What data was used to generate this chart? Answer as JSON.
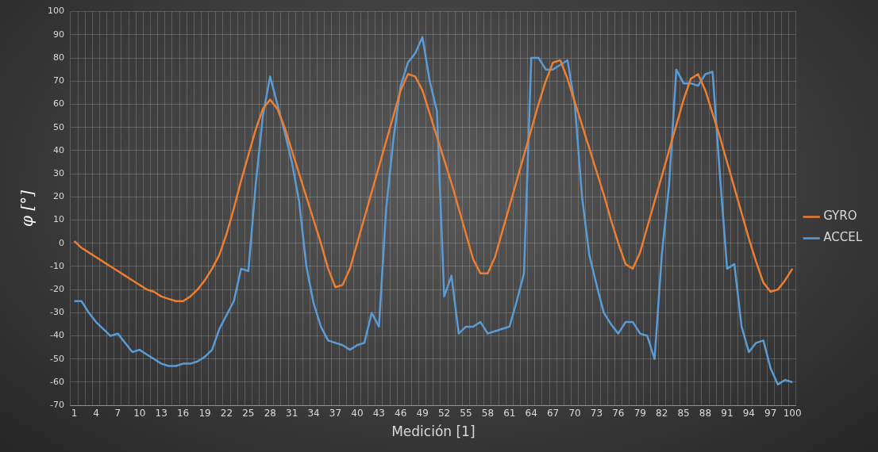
{
  "chart_data": {
    "type": "line",
    "xlabel": "Medición [1]",
    "ylabel": "φ [°]",
    "categories": [
      "1",
      null,
      null,
      "4",
      null,
      null,
      "7",
      null,
      null,
      "10",
      null,
      null,
      "13",
      null,
      null,
      "16",
      null,
      null,
      "19",
      null,
      null,
      "22",
      null,
      null,
      "25",
      null,
      null,
      "28",
      null,
      null,
      "31",
      null,
      null,
      "34",
      null,
      null,
      "37",
      null,
      null,
      "40",
      null,
      null,
      "43",
      null,
      null,
      "46",
      null,
      null,
      "49",
      null,
      null,
      "52",
      null,
      null,
      "55",
      null,
      null,
      "58",
      null,
      null,
      "61",
      null,
      null,
      "64",
      null,
      null,
      "67",
      null,
      null,
      "70",
      null,
      null,
      "73",
      null,
      null,
      "76",
      null,
      null,
      "79",
      null,
      null,
      "82",
      null,
      null,
      "85",
      null,
      null,
      "88",
      null,
      null,
      "91",
      null,
      null,
      "94",
      null,
      null,
      "97",
      null,
      null,
      "100"
    ],
    "series": [
      {
        "name": "GYRO",
        "color": "#ed7d31",
        "values": [
          1,
          -2,
          -4,
          -6,
          -8,
          -10,
          -12,
          -14,
          -16,
          -18,
          -20,
          -21,
          -23,
          -24,
          -25,
          -25,
          -23,
          -20,
          -16,
          -11,
          -5,
          4,
          15,
          27,
          38,
          49,
          58,
          62,
          58,
          50,
          40,
          30,
          20,
          10,
          0,
          -11,
          -19,
          -18,
          -11,
          0,
          11,
          22,
          33,
          44,
          55,
          66,
          73,
          72,
          66,
          56,
          46,
          36,
          26,
          15,
          4,
          -7,
          -13,
          -13,
          -6,
          5,
          16,
          27,
          38,
          49,
          60,
          70,
          78,
          79,
          71,
          61,
          51,
          41,
          31,
          21,
          10,
          0,
          -9,
          -11,
          -4,
          7,
          18,
          29,
          40,
          51,
          62,
          71,
          73,
          66,
          56,
          46,
          35,
          24,
          13,
          2,
          -8,
          -17,
          -21,
          -20,
          -16,
          -11
        ]
      },
      {
        "name": "ACCEL",
        "color": "#5b9bd5",
        "values": [
          -25,
          -25,
          -30,
          -34,
          -37,
          -40,
          -39,
          -43,
          -47,
          -46,
          -48,
          -50,
          -52,
          -53,
          -53,
          -52,
          -52,
          -51,
          -49,
          -46,
          -37,
          -31,
          -25,
          -11,
          -12,
          25,
          55,
          72,
          60,
          48,
          35,
          18,
          -10,
          -26,
          -36,
          -42,
          -43,
          -44,
          -46,
          -44,
          -43,
          -30,
          -36,
          15,
          45,
          68,
          78,
          82,
          89,
          70,
          57,
          -23,
          -14,
          -39,
          -36,
          -36,
          -34,
          -39,
          -38,
          -37,
          -36,
          -25,
          -13,
          80,
          80,
          75,
          75,
          77,
          79,
          60,
          20,
          -5,
          -18,
          -30,
          -35,
          -39,
          -34,
          -34,
          -39,
          -40,
          -50,
          -5,
          25,
          75,
          69,
          69,
          68,
          73,
          74,
          30,
          -11,
          -9,
          -36,
          -47,
          -43,
          -42,
          -54,
          -61,
          -59,
          -60
        ]
      }
    ],
    "ylim": [
      -70,
      100
    ],
    "yticks": [
      -70,
      -60,
      -50,
      -40,
      -30,
      -20,
      -10,
      0,
      10,
      20,
      30,
      40,
      50,
      60,
      70,
      80,
      90,
      100
    ],
    "grid": true,
    "legend": "right"
  }
}
